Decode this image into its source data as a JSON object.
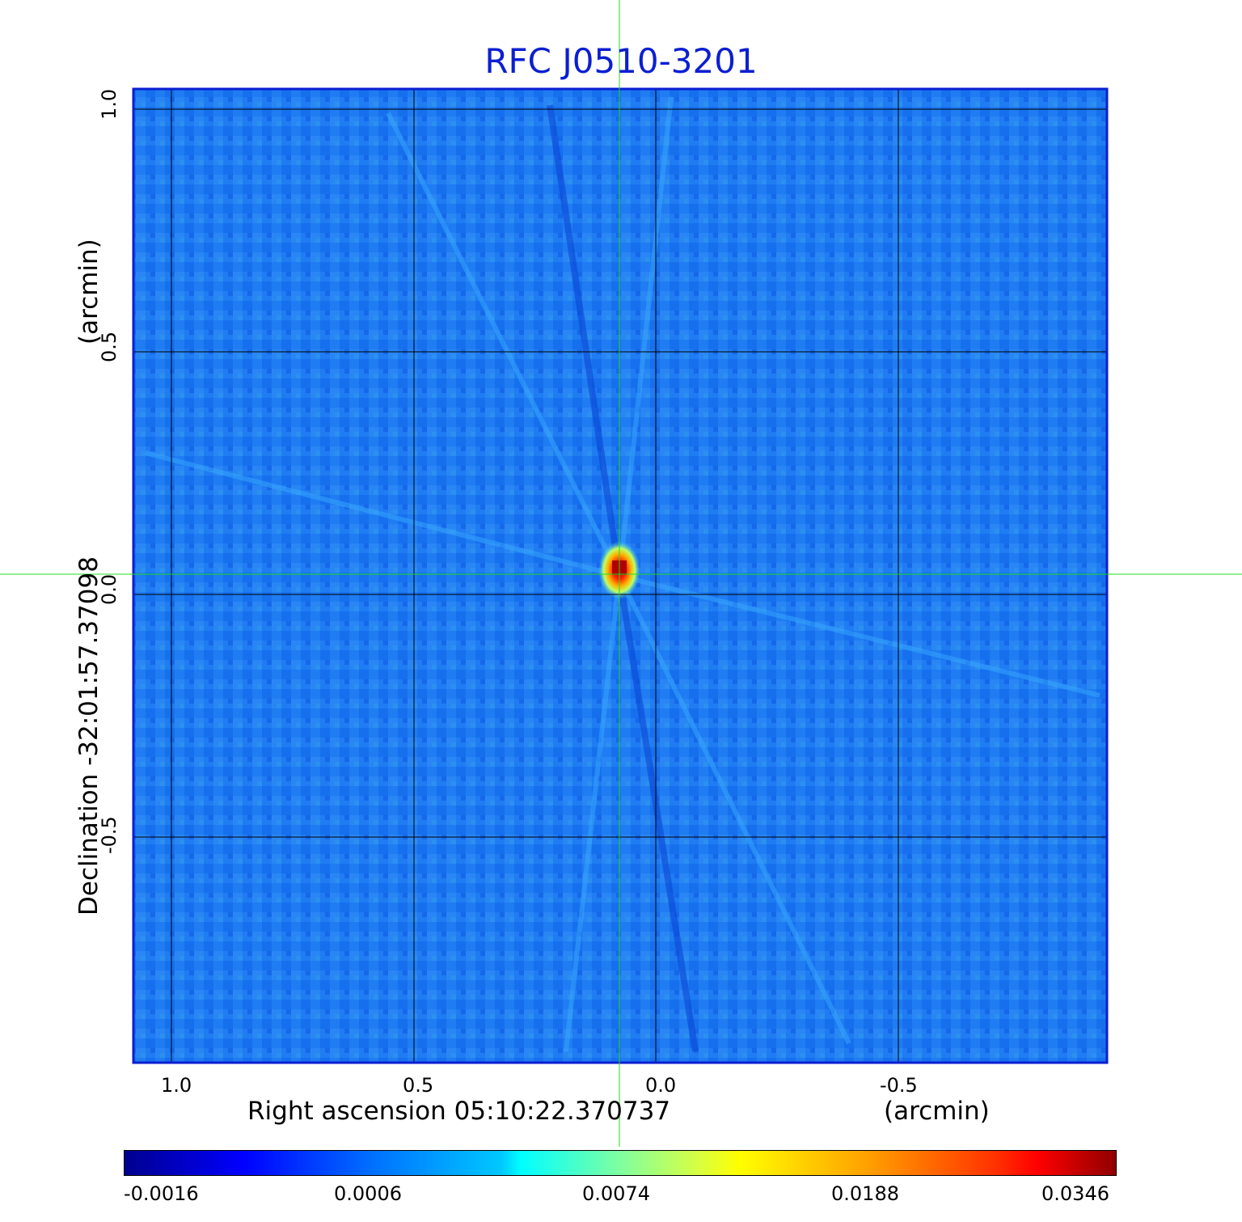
{
  "title": "RFC J0510-3201",
  "x_axis": {
    "label": "Right ascension  05:10:22.370737",
    "unit": "(arcmin)",
    "ticks": [
      "1.0",
      "0.5",
      "0.0",
      "-0.5"
    ]
  },
  "y_axis": {
    "label": "Declination  -32:01:57.37098",
    "unit": "(arcmin)",
    "ticks": [
      "1.0",
      "0.5",
      "0.0",
      "-0.5"
    ]
  },
  "colorbar": {
    "ticks": [
      "-0.0016",
      "0.0006",
      "0.0074",
      "0.0188",
      "0.0346"
    ],
    "colormap": "jet"
  },
  "colors": {
    "title": "#0b1fd1",
    "frame": "#0b1fd1",
    "background_map": "#1a78f0",
    "crosshair": "#22dd22",
    "grid": "#000000"
  }
}
